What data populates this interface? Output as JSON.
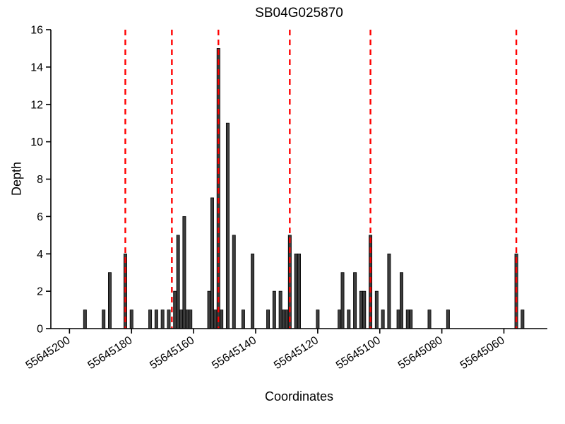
{
  "chart_data": {
    "type": "bar",
    "title": "SB04G025870",
    "xlabel": "Coordinates",
    "ylabel": "Depth",
    "x_reversed": true,
    "xlim": [
      55645206,
      55645046
    ],
    "ylim": [
      0,
      16
    ],
    "xticks": [
      55645200,
      55645180,
      55645160,
      55645140,
      55645120,
      55645100,
      55645080,
      55645060
    ],
    "yticks": [
      0,
      2,
      4,
      6,
      8,
      10,
      12,
      14,
      16
    ],
    "grid": false,
    "legend": "none",
    "bar_color": "#3d3d3d",
    "bar_edge_color": "#000000",
    "bars": [
      {
        "x": 55645195,
        "depth": 1
      },
      {
        "x": 55645189,
        "depth": 1
      },
      {
        "x": 55645187,
        "depth": 3
      },
      {
        "x": 55645182,
        "depth": 4
      },
      {
        "x": 55645180,
        "depth": 1
      },
      {
        "x": 55645174,
        "depth": 1
      },
      {
        "x": 55645172,
        "depth": 1
      },
      {
        "x": 55645170,
        "depth": 1
      },
      {
        "x": 55645168,
        "depth": 1
      },
      {
        "x": 55645166,
        "depth": 2
      },
      {
        "x": 55645165,
        "depth": 5
      },
      {
        "x": 55645164,
        "depth": 1
      },
      {
        "x": 55645163,
        "depth": 6
      },
      {
        "x": 55645162,
        "depth": 1
      },
      {
        "x": 55645161,
        "depth": 1
      },
      {
        "x": 55645155,
        "depth": 2
      },
      {
        "x": 55645154,
        "depth": 7
      },
      {
        "x": 55645153,
        "depth": 1
      },
      {
        "x": 55645152,
        "depth": 15
      },
      {
        "x": 55645151,
        "depth": 1
      },
      {
        "x": 55645149,
        "depth": 11
      },
      {
        "x": 55645147,
        "depth": 5
      },
      {
        "x": 55645144,
        "depth": 1
      },
      {
        "x": 55645141,
        "depth": 4
      },
      {
        "x": 55645136,
        "depth": 1
      },
      {
        "x": 55645134,
        "depth": 2
      },
      {
        "x": 55645132,
        "depth": 2
      },
      {
        "x": 55645131,
        "depth": 1
      },
      {
        "x": 55645130,
        "depth": 1
      },
      {
        "x": 55645129,
        "depth": 5
      },
      {
        "x": 55645127,
        "depth": 4
      },
      {
        "x": 55645126,
        "depth": 4
      },
      {
        "x": 55645120,
        "depth": 1
      },
      {
        "x": 55645113,
        "depth": 1
      },
      {
        "x": 55645112,
        "depth": 3
      },
      {
        "x": 55645110,
        "depth": 1
      },
      {
        "x": 55645108,
        "depth": 3
      },
      {
        "x": 55645106,
        "depth": 2
      },
      {
        "x": 55645105,
        "depth": 2
      },
      {
        "x": 55645103,
        "depth": 5
      },
      {
        "x": 55645101,
        "depth": 2
      },
      {
        "x": 55645099,
        "depth": 1
      },
      {
        "x": 55645097,
        "depth": 4
      },
      {
        "x": 55645094,
        "depth": 1
      },
      {
        "x": 55645093,
        "depth": 3
      },
      {
        "x": 55645091,
        "depth": 1
      },
      {
        "x": 55645090,
        "depth": 1
      },
      {
        "x": 55645084,
        "depth": 1
      },
      {
        "x": 55645078,
        "depth": 1
      },
      {
        "x": 55645056,
        "depth": 4
      },
      {
        "x": 55645054,
        "depth": 1
      }
    ],
    "vlines": {
      "color": "#ff0000",
      "style": "dashed",
      "positions": [
        55645182,
        55645167,
        55645152,
        55645129,
        55645103,
        55645056
      ]
    }
  }
}
